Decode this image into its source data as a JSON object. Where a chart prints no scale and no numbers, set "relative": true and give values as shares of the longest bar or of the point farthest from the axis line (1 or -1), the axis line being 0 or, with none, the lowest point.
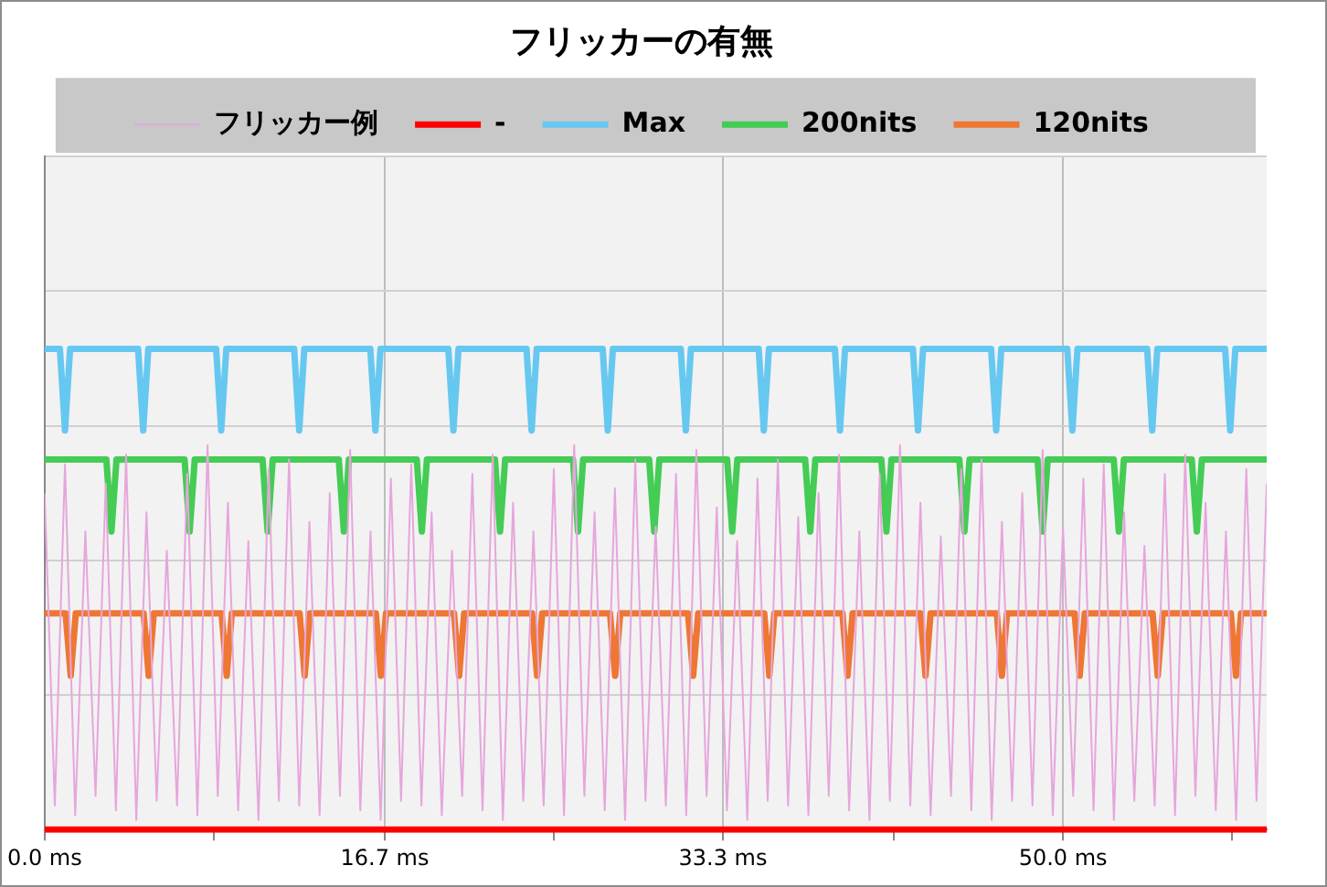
{
  "chart_data": {
    "type": "line",
    "title": "フリッカーの有無",
    "relative": true,
    "grid": true,
    "legend": "top",
    "marker": "none",
    "xlim": [
      0,
      60
    ],
    "xticks": [
      {
        "value": 0,
        "label": "0.0 ms"
      },
      {
        "value": 8.33,
        "label": null
      },
      {
        "value": 16.7,
        "label": "16.7 ms"
      },
      {
        "value": 25,
        "label": null
      },
      {
        "value": 33.3,
        "label": "33.3 ms"
      },
      {
        "value": 41.7,
        "label": null
      },
      {
        "value": 50,
        "label": "50.0 ms"
      },
      {
        "value": 58.3,
        "label": null
      }
    ],
    "series": [
      {
        "name": "フリッカー例",
        "color": "#e6a6dc",
        "x": [
          0,
          0.5,
          1,
          1.5,
          2,
          2.5,
          3,
          3.5,
          4,
          4.5,
          5,
          5.5,
          6,
          6.5,
          7,
          7.5,
          8,
          8.5,
          9,
          9.5,
          10,
          10.5,
          11,
          11.5,
          12,
          12.5,
          13,
          13.5,
          14,
          14.5,
          15,
          15.5,
          16,
          16.5,
          17,
          17.5,
          18,
          18.5,
          19,
          19.5,
          20,
          20.5,
          21,
          21.5,
          22,
          22.5,
          23,
          23.5,
          24,
          24.5,
          25,
          25.5,
          26,
          26.5,
          27,
          27.5,
          28,
          28.5,
          29,
          29.5,
          30,
          30.5,
          31,
          31.5,
          32,
          32.5,
          33,
          33.5,
          34,
          34.5,
          35,
          35.5,
          36,
          36.5,
          37,
          37.5,
          38,
          38.5,
          39,
          39.5,
          40,
          40.5,
          41,
          41.5,
          42,
          42.5,
          43,
          43.5,
          44,
          44.5,
          45,
          45.5,
          46,
          46.5,
          47,
          47.5,
          48,
          48.5,
          49,
          49.5,
          50,
          50.5,
          51,
          51.5,
          52,
          52.5,
          53,
          53.5,
          54,
          54.5,
          55,
          55.5,
          56,
          56.5,
          57,
          57.5,
          58,
          58.5,
          59,
          59.5,
          60
        ],
        "values": [
          0.7,
          0.05,
          0.76,
          0.03,
          0.62,
          0.07,
          0.72,
          0.04,
          0.78,
          0.02,
          0.66,
          0.06,
          0.58,
          0.05,
          0.74,
          0.03,
          0.8,
          0.07,
          0.68,
          0.04,
          0.6,
          0.02,
          0.75,
          0.06,
          0.77,
          0.05,
          0.64,
          0.03,
          0.7,
          0.07,
          0.79,
          0.04,
          0.62,
          0.02,
          0.73,
          0.06,
          0.76,
          0.05,
          0.66,
          0.03,
          0.58,
          0.07,
          0.74,
          0.04,
          0.78,
          0.02,
          0.68,
          0.06,
          0.62,
          0.05,
          0.75,
          0.03,
          0.8,
          0.07,
          0.66,
          0.04,
          0.71,
          0.02,
          0.77,
          0.06,
          0.63,
          0.05,
          0.74,
          0.03,
          0.79,
          0.07,
          0.67,
          0.04,
          0.6,
          0.02,
          0.73,
          0.06,
          0.77,
          0.05,
          0.65,
          0.03,
          0.7,
          0.07,
          0.78,
          0.04,
          0.62,
          0.02,
          0.74,
          0.06,
          0.8,
          0.05,
          0.68,
          0.03,
          0.61,
          0.07,
          0.75,
          0.04,
          0.77,
          0.02,
          0.64,
          0.06,
          0.7,
          0.05,
          0.79,
          0.03,
          0.63,
          0.07,
          0.73,
          0.04,
          0.76,
          0.02,
          0.66,
          0.06,
          0.59,
          0.05,
          0.74,
          0.03,
          0.78,
          0.07,
          0.68,
          0.04,
          0.62,
          0.02,
          0.75,
          0.06,
          0.72
        ]
      },
      {
        "name": "-",
        "color": "#ff0000",
        "x": [
          0,
          60
        ],
        "values": [
          0,
          0
        ]
      },
      {
        "name": "Max",
        "color": "#66c8f0",
        "x": [
          0,
          0.75,
          1.0,
          1.25,
          4.59,
          4.84,
          5.09,
          8.42,
          8.67,
          8.92,
          12.25,
          12.5,
          12.75,
          15.99,
          16.24,
          16.49,
          19.82,
          20.07,
          20.32,
          23.66,
          23.91,
          24.16,
          27.4,
          27.65,
          27.9,
          31.23,
          31.48,
          31.73,
          35.06,
          35.31,
          35.56,
          38.8,
          39.05,
          39.3,
          42.63,
          42.88,
          43.13,
          46.47,
          46.72,
          46.97,
          50.21,
          50.46,
          50.71,
          54.13,
          54.38,
          54.63,
          57.96,
          58.21,
          58.46,
          60
        ],
        "values": [
          1,
          1,
          0.83,
          1,
          1,
          0.83,
          1,
          1,
          0.83,
          1,
          1,
          0.83,
          1,
          1,
          0.83,
          1,
          1,
          0.83,
          1,
          1,
          0.83,
          1,
          1,
          0.83,
          1,
          1,
          0.83,
          1,
          1,
          0.83,
          1,
          1,
          0.83,
          1,
          1,
          0.83,
          1,
          1,
          0.83,
          1,
          1,
          0.83,
          1,
          1,
          0.83,
          1,
          1,
          0.83,
          1,
          1
        ]
      },
      {
        "name": "200nits",
        "color": "#44cc55",
        "x": [
          0,
          3.03,
          3.28,
          3.53,
          6.87,
          7.12,
          7.37,
          10.7,
          10.95,
          11.2,
          14.44,
          14.69,
          14.94,
          18.27,
          18.52,
          18.77,
          22.11,
          22.36,
          22.61,
          25.94,
          26.19,
          26.44,
          29.68,
          29.93,
          30.18,
          33.51,
          33.76,
          34.01,
          37.34,
          37.59,
          37.84,
          41.08,
          41.33,
          41.58,
          44.91,
          45.16,
          45.41,
          48.75,
          49.0,
          49.25,
          52.49,
          52.74,
          52.99,
          56.32,
          56.57,
          56.82,
          60
        ],
        "values": [
          0.77,
          0.77,
          0.62,
          0.77,
          0.77,
          0.62,
          0.77,
          0.77,
          0.62,
          0.77,
          0.77,
          0.62,
          0.77,
          0.77,
          0.62,
          0.77,
          0.77,
          0.62,
          0.77,
          0.77,
          0.62,
          0.77,
          0.77,
          0.62,
          0.77,
          0.77,
          0.62,
          0.77,
          0.77,
          0.62,
          0.77,
          0.77,
          0.62,
          0.77,
          0.77,
          0.62,
          0.77,
          0.77,
          0.62,
          0.77,
          0.77,
          0.62,
          0.77,
          0.77,
          0.62,
          0.77,
          0.77
        ]
      },
      {
        "name": "120nits",
        "color": "#ee7733",
        "x": [
          0,
          1.03,
          1.28,
          1.53,
          4.86,
          5.11,
          5.36,
          8.69,
          8.94,
          9.19,
          12.52,
          12.77,
          13.02,
          16.26,
          16.51,
          16.76,
          20.1,
          20.35,
          20.6,
          23.93,
          24.18,
          24.43,
          27.76,
          28.01,
          28.26,
          31.59,
          31.84,
          32.09,
          35.33,
          35.58,
          35.83,
          39.17,
          39.42,
          39.67,
          43.0,
          43.25,
          43.5,
          46.75,
          47.0,
          47.25,
          50.57,
          50.82,
          51.07,
          54.4,
          54.65,
          54.9,
          58.24,
          58.49,
          58.74,
          60
        ],
        "values": [
          0.45,
          0.45,
          0.32,
          0.45,
          0.45,
          0.32,
          0.45,
          0.45,
          0.32,
          0.45,
          0.45,
          0.32,
          0.45,
          0.45,
          0.32,
          0.45,
          0.45,
          0.32,
          0.45,
          0.45,
          0.32,
          0.45,
          0.45,
          0.32,
          0.45,
          0.45,
          0.32,
          0.45,
          0.45,
          0.32,
          0.45,
          0.45,
          0.32,
          0.45,
          0.45,
          0.32,
          0.45,
          0.45,
          0.32,
          0.45,
          0.45,
          0.32,
          0.45,
          0.45,
          0.32,
          0.45,
          0.45,
          0.32,
          0.45,
          0.45
        ]
      }
    ]
  }
}
